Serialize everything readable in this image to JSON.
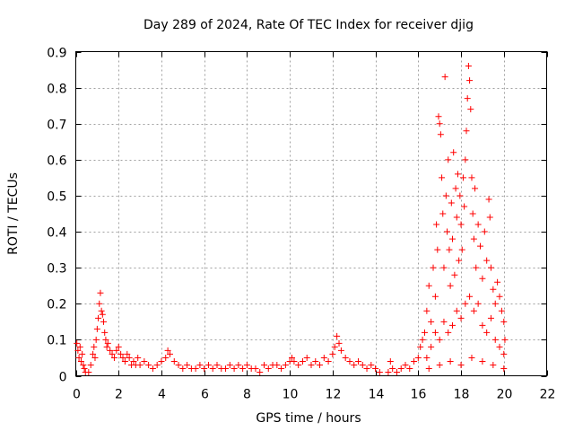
{
  "chart_data": {
    "type": "scatter",
    "title": "Day 289 of 2024, Rate Of TEC Index for receiver djig",
    "xlabel": "GPS time / hours",
    "ylabel": "ROTI / TECUs",
    "xlim": [
      0,
      22
    ],
    "ylim": [
      0,
      0.9
    ],
    "x_ticks": [
      0,
      2,
      4,
      6,
      8,
      10,
      12,
      14,
      16,
      18,
      20,
      22
    ],
    "x_tick_labels": [
      "0",
      "2",
      "4",
      "6",
      "8",
      "10",
      "12",
      "14",
      "16",
      "18",
      "20",
      "22"
    ],
    "y_ticks": [
      0,
      0.1,
      0.2,
      0.3,
      0.4,
      0.5,
      0.6,
      0.7,
      0.8,
      0.9
    ],
    "y_tick_labels": [
      "0",
      "0.1",
      "0.2",
      "0.3",
      "0.4",
      "0.5",
      "0.6",
      "0.7",
      "0.8",
      "0.9"
    ],
    "grid": true,
    "marker": "+",
    "series": [
      {
        "name": "ROTI",
        "color": "#ff0000",
        "points": [
          [
            0.05,
            0.09
          ],
          [
            0.1,
            0.07
          ],
          [
            0.15,
            0.05
          ],
          [
            0.2,
            0.08
          ],
          [
            0.25,
            0.04
          ],
          [
            0.3,
            0.06
          ],
          [
            0.35,
            0.03
          ],
          [
            0.4,
            0.02
          ],
          [
            0.45,
            0.01
          ],
          [
            0.6,
            0.01
          ],
          [
            0.7,
            0.03
          ],
          [
            0.8,
            0.06
          ],
          [
            0.85,
            0.08
          ],
          [
            0.9,
            0.05
          ],
          [
            0.95,
            0.1
          ],
          [
            1.0,
            0.13
          ],
          [
            1.05,
            0.16
          ],
          [
            1.1,
            0.2
          ],
          [
            1.15,
            0.23
          ],
          [
            1.2,
            0.18
          ],
          [
            1.25,
            0.17
          ],
          [
            1.3,
            0.15
          ],
          [
            1.35,
            0.12
          ],
          [
            1.4,
            0.1
          ],
          [
            1.45,
            0.08
          ],
          [
            1.5,
            0.09
          ],
          [
            1.6,
            0.07
          ],
          [
            1.7,
            0.06
          ],
          [
            1.8,
            0.05
          ],
          [
            1.9,
            0.07
          ],
          [
            2.0,
            0.08
          ],
          [
            2.1,
            0.06
          ],
          [
            2.2,
            0.05
          ],
          [
            2.3,
            0.04
          ],
          [
            2.4,
            0.06
          ],
          [
            2.5,
            0.05
          ],
          [
            2.6,
            0.03
          ],
          [
            2.7,
            0.04
          ],
          [
            2.8,
            0.03
          ],
          [
            2.9,
            0.05
          ],
          [
            3.0,
            0.03
          ],
          [
            3.2,
            0.04
          ],
          [
            3.4,
            0.03
          ],
          [
            3.6,
            0.02
          ],
          [
            3.8,
            0.03
          ],
          [
            4.0,
            0.04
          ],
          [
            4.2,
            0.05
          ],
          [
            4.3,
            0.07
          ],
          [
            4.4,
            0.06
          ],
          [
            4.6,
            0.04
          ],
          [
            4.8,
            0.03
          ],
          [
            5.0,
            0.02
          ],
          [
            5.2,
            0.03
          ],
          [
            5.4,
            0.02
          ],
          [
            5.6,
            0.02
          ],
          [
            5.8,
            0.03
          ],
          [
            6.0,
            0.02
          ],
          [
            6.2,
            0.03
          ],
          [
            6.4,
            0.02
          ],
          [
            6.6,
            0.03
          ],
          [
            6.8,
            0.02
          ],
          [
            7.0,
            0.02
          ],
          [
            7.2,
            0.03
          ],
          [
            7.4,
            0.02
          ],
          [
            7.6,
            0.03
          ],
          [
            7.8,
            0.02
          ],
          [
            8.0,
            0.03
          ],
          [
            8.2,
            0.02
          ],
          [
            8.4,
            0.02
          ],
          [
            8.6,
            0.01
          ],
          [
            8.8,
            0.03
          ],
          [
            9.0,
            0.02
          ],
          [
            9.2,
            0.03
          ],
          [
            9.4,
            0.03
          ],
          [
            9.6,
            0.02
          ],
          [
            9.8,
            0.03
          ],
          [
            10.0,
            0.04
          ],
          [
            10.1,
            0.05
          ],
          [
            10.2,
            0.04
          ],
          [
            10.4,
            0.03
          ],
          [
            10.6,
            0.04
          ],
          [
            10.8,
            0.05
          ],
          [
            11.0,
            0.03
          ],
          [
            11.2,
            0.04
          ],
          [
            11.4,
            0.03
          ],
          [
            11.6,
            0.05
          ],
          [
            11.8,
            0.04
          ],
          [
            12.0,
            0.06
          ],
          [
            12.1,
            0.08
          ],
          [
            12.2,
            0.11
          ],
          [
            12.3,
            0.09
          ],
          [
            12.4,
            0.07
          ],
          [
            12.6,
            0.05
          ],
          [
            12.8,
            0.04
          ],
          [
            13.0,
            0.03
          ],
          [
            13.2,
            0.04
          ],
          [
            13.4,
            0.03
          ],
          [
            13.6,
            0.02
          ],
          [
            13.8,
            0.03
          ],
          [
            14.0,
            0.02
          ],
          [
            14.2,
            0.01
          ],
          [
            14.6,
            0.01
          ],
          [
            14.7,
            0.04
          ],
          [
            14.8,
            0.02
          ],
          [
            15.0,
            0.01
          ],
          [
            15.2,
            0.02
          ],
          [
            15.4,
            0.03
          ],
          [
            15.6,
            0.02
          ],
          [
            15.8,
            0.04
          ],
          [
            16.0,
            0.05
          ],
          [
            16.1,
            0.08
          ],
          [
            16.2,
            0.1
          ],
          [
            16.3,
            0.12
          ],
          [
            16.4,
            0.18
          ],
          [
            16.5,
            0.25
          ],
          [
            16.6,
            0.15
          ],
          [
            16.7,
            0.3
          ],
          [
            16.8,
            0.22
          ],
          [
            16.85,
            0.42
          ],
          [
            16.9,
            0.35
          ],
          [
            16.95,
            0.72
          ],
          [
            17.0,
            0.7
          ],
          [
            17.05,
            0.67
          ],
          [
            17.1,
            0.55
          ],
          [
            17.15,
            0.45
          ],
          [
            17.2,
            0.3
          ],
          [
            17.25,
            0.83
          ],
          [
            17.3,
            0.5
          ],
          [
            17.35,
            0.4
          ],
          [
            17.4,
            0.6
          ],
          [
            17.45,
            0.35
          ],
          [
            17.5,
            0.25
          ],
          [
            17.55,
            0.48
          ],
          [
            17.6,
            0.38
          ],
          [
            17.65,
            0.62
          ],
          [
            17.7,
            0.28
          ],
          [
            17.75,
            0.52
          ],
          [
            17.8,
            0.44
          ],
          [
            17.85,
            0.56
          ],
          [
            17.9,
            0.32
          ],
          [
            17.95,
            0.5
          ],
          [
            18.0,
            0.42
          ],
          [
            18.05,
            0.35
          ],
          [
            18.1,
            0.55
          ],
          [
            18.15,
            0.47
          ],
          [
            18.2,
            0.6
          ],
          [
            18.25,
            0.68
          ],
          [
            18.3,
            0.77
          ],
          [
            18.35,
            0.86
          ],
          [
            18.4,
            0.82
          ],
          [
            18.45,
            0.74
          ],
          [
            18.5,
            0.55
          ],
          [
            18.55,
            0.45
          ],
          [
            18.6,
            0.38
          ],
          [
            18.65,
            0.52
          ],
          [
            18.7,
            0.3
          ],
          [
            18.8,
            0.42
          ],
          [
            18.9,
            0.36
          ],
          [
            19.0,
            0.27
          ],
          [
            19.1,
            0.4
          ],
          [
            19.2,
            0.32
          ],
          [
            19.3,
            0.49
          ],
          [
            19.35,
            0.44
          ],
          [
            19.4,
            0.3
          ],
          [
            19.5,
            0.24
          ],
          [
            19.6,
            0.2
          ],
          [
            19.7,
            0.26
          ],
          [
            19.8,
            0.22
          ],
          [
            19.9,
            0.18
          ],
          [
            20.0,
            0.15
          ],
          [
            20.05,
            0.1
          ],
          [
            16.4,
            0.05
          ],
          [
            16.6,
            0.08
          ],
          [
            16.8,
            0.12
          ],
          [
            17.0,
            0.1
          ],
          [
            17.2,
            0.15
          ],
          [
            17.4,
            0.12
          ],
          [
            17.6,
            0.14
          ],
          [
            17.8,
            0.18
          ],
          [
            18.0,
            0.16
          ],
          [
            18.2,
            0.2
          ],
          [
            18.4,
            0.22
          ],
          [
            18.6,
            0.18
          ],
          [
            18.8,
            0.2
          ],
          [
            19.0,
            0.14
          ],
          [
            19.2,
            0.12
          ],
          [
            19.4,
            0.16
          ],
          [
            19.6,
            0.1
          ],
          [
            19.8,
            0.08
          ],
          [
            20.0,
            0.06
          ],
          [
            16.5,
            0.02
          ],
          [
            17.0,
            0.03
          ],
          [
            17.5,
            0.04
          ],
          [
            18.0,
            0.03
          ],
          [
            18.5,
            0.05
          ],
          [
            19.0,
            0.04
          ],
          [
            19.5,
            0.03
          ],
          [
            20.0,
            0.02
          ]
        ]
      }
    ]
  }
}
